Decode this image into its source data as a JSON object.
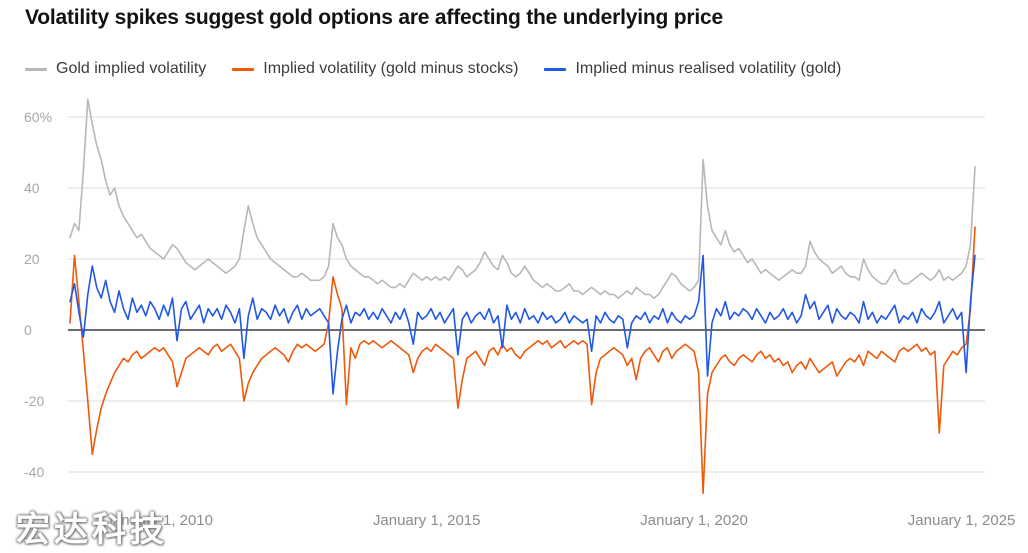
{
  "title": "Volatility spikes suggest gold options are affecting the underlying price",
  "watermark": "宏达科技",
  "colors": {
    "gray_series": "#b8b8b8",
    "orange_series": "#ee5a0a",
    "blue_series": "#2057e5",
    "grid": "#dcdcdc",
    "zero_line": "#3c3c3c",
    "title_text": "#121212",
    "legend_text": "#3c3c3c",
    "y_axis_text": "#a8a8a8",
    "x_axis_text": "#8c8c8c"
  },
  "legend": [
    {
      "label": "Gold implied volatility",
      "color": "#b8b8b8"
    },
    {
      "label": "Implied volatility (gold minus stocks)",
      "color": "#ee5a0a"
    },
    {
      "label": "Implied minus realised volatility (gold)",
      "color": "#2057e5"
    }
  ],
  "chart_data": {
    "type": "line",
    "title": "Volatility spikes suggest gold options are affecting the underlying price",
    "xlabel": "",
    "ylabel": "",
    "unit": "%",
    "grid": "horizontal",
    "legend_position": "top",
    "x_start": 2008.3333,
    "x_step": 0.0833333,
    "x_tick_values": [
      2010,
      2015,
      2020,
      2025
    ],
    "x_tick_labels": [
      "January 1, 2010",
      "January 1, 2015",
      "January 1, 2020",
      "January 1, 2025"
    ],
    "y_ticks": [
      60,
      40,
      20,
      0,
      -20,
      -40
    ],
    "y_tick_labels": [
      "60%",
      "40",
      "20",
      "0",
      "-20",
      "-40"
    ],
    "ylim": [
      -48,
      66
    ],
    "series": [
      {
        "name": "Gold implied volatility",
        "color": "#b8b8b8",
        "values": [
          26,
          30,
          28,
          45,
          65,
          58,
          52,
          48,
          42,
          38,
          40,
          35,
          32,
          30,
          28,
          26,
          27,
          25,
          23,
          22,
          21,
          20,
          22,
          24,
          23,
          21,
          19,
          18,
          17,
          18,
          19,
          20,
          19,
          18,
          17,
          16,
          17,
          18,
          20,
          28,
          35,
          30,
          26,
          24,
          22,
          20,
          19,
          18,
          17,
          16,
          15,
          15,
          16,
          15,
          14,
          14,
          14,
          15,
          18,
          30,
          26,
          24,
          20,
          18,
          17,
          16,
          15,
          15,
          14,
          13,
          14,
          13,
          12,
          12,
          13,
          12,
          14,
          16,
          15,
          14,
          15,
          14,
          15,
          14,
          15,
          14,
          16,
          18,
          17,
          15,
          16,
          17,
          19,
          22,
          20,
          18,
          17,
          21,
          19,
          16,
          15,
          16,
          18,
          16,
          14,
          13,
          12,
          13,
          12,
          11,
          11,
          12,
          13,
          11,
          11,
          10,
          11,
          12,
          11,
          10,
          11,
          10,
          10,
          9,
          10,
          11,
          10,
          12,
          11,
          10,
          10,
          9,
          10,
          12,
          14,
          16,
          15,
          13,
          12,
          11,
          12,
          14,
          48,
          35,
          28,
          26,
          24,
          28,
          24,
          22,
          23,
          21,
          19,
          20,
          18,
          16,
          17,
          16,
          15,
          14,
          15,
          16,
          17,
          16,
          16,
          18,
          25,
          22,
          20,
          19,
          18,
          16,
          17,
          18,
          16,
          15,
          15,
          14,
          20,
          17,
          15,
          14,
          13,
          13,
          15,
          17,
          14,
          13,
          13,
          14,
          15,
          16,
          15,
          14,
          15,
          17,
          14,
          15,
          14,
          15,
          16,
          18,
          24,
          46
        ]
      },
      {
        "name": "Implied volatility (gold minus stocks)",
        "color": "#ee5a0a",
        "values": [
          2,
          21,
          8,
          -6,
          -20,
          -35,
          -28,
          -22,
          -18,
          -15,
          -12,
          -10,
          -8,
          -9,
          -7,
          -6,
          -8,
          -7,
          -6,
          -5,
          -6,
          -5,
          -7,
          -9,
          -16,
          -12,
          -8,
          -7,
          -6,
          -5,
          -6,
          -7,
          -5,
          -4,
          -6,
          -5,
          -4,
          -6,
          -8,
          -20,
          -15,
          -12,
          -10,
          -8,
          -7,
          -6,
          -5,
          -6,
          -7,
          -9,
          -6,
          -4,
          -5,
          -4,
          -5,
          -6,
          -5,
          -4,
          2,
          15,
          10,
          6,
          -21,
          -5,
          -8,
          -4,
          -3,
          -4,
          -3,
          -4,
          -5,
          -4,
          -3,
          -4,
          -5,
          -6,
          -7,
          -12,
          -8,
          -6,
          -5,
          -6,
          -4,
          -5,
          -6,
          -7,
          -8,
          -22,
          -14,
          -8,
          -7,
          -6,
          -8,
          -10,
          -6,
          -5,
          -7,
          -4,
          -6,
          -5,
          -7,
          -8,
          -6,
          -5,
          -4,
          -3,
          -4,
          -3,
          -5,
          -4,
          -3,
          -5,
          -4,
          -3,
          -4,
          -3,
          -4,
          -21,
          -12,
          -8,
          -7,
          -6,
          -5,
          -6,
          -7,
          -10,
          -8,
          -14,
          -8,
          -6,
          -5,
          -7,
          -9,
          -6,
          -5,
          -8,
          -6,
          -5,
          -4,
          -5,
          -6,
          -12,
          -46,
          -18,
          -12,
          -10,
          -8,
          -7,
          -9,
          -10,
          -8,
          -7,
          -8,
          -9,
          -7,
          -6,
          -8,
          -7,
          -9,
          -8,
          -10,
          -9,
          -12,
          -10,
          -9,
          -11,
          -8,
          -10,
          -12,
          -11,
          -10,
          -9,
          -13,
          -11,
          -9,
          -8,
          -9,
          -7,
          -10,
          -6,
          -7,
          -8,
          -6,
          -7,
          -8,
          -9,
          -6,
          -5,
          -6,
          -5,
          -4,
          -6,
          -5,
          -7,
          -6,
          -29,
          -10,
          -8,
          -6,
          -7,
          -5,
          -4,
          6,
          29
        ]
      },
      {
        "name": "Implied minus realised volatility (gold)",
        "color": "#2057e5",
        "values": [
          8,
          13,
          5,
          -2,
          10,
          18,
          12,
          9,
          14,
          8,
          5,
          11,
          6,
          3,
          9,
          5,
          7,
          4,
          8,
          6,
          3,
          7,
          4,
          9,
          -3,
          6,
          8,
          3,
          5,
          7,
          2,
          6,
          4,
          6,
          3,
          7,
          5,
          2,
          6,
          -8,
          4,
          9,
          3,
          6,
          5,
          3,
          7,
          4,
          6,
          2,
          5,
          7,
          3,
          6,
          4,
          5,
          6,
          4,
          2,
          -18,
          -6,
          3,
          7,
          2,
          5,
          4,
          6,
          3,
          5,
          3,
          6,
          4,
          2,
          5,
          3,
          6,
          2,
          -4,
          5,
          3,
          4,
          6,
          3,
          5,
          2,
          4,
          6,
          -7,
          3,
          5,
          2,
          4,
          5,
          3,
          6,
          2,
          4,
          -5,
          7,
          3,
          5,
          2,
          6,
          3,
          4,
          2,
          5,
          3,
          4,
          2,
          3,
          5,
          2,
          4,
          3,
          2,
          3,
          -6,
          4,
          2,
          5,
          3,
          2,
          4,
          3,
          -5,
          2,
          4,
          3,
          5,
          2,
          4,
          3,
          6,
          2,
          5,
          3,
          2,
          4,
          3,
          4,
          8,
          21,
          -13,
          2,
          6,
          4,
          8,
          3,
          5,
          4,
          6,
          5,
          3,
          6,
          4,
          2,
          5,
          3,
          4,
          6,
          3,
          5,
          2,
          4,
          10,
          6,
          8,
          3,
          5,
          7,
          2,
          6,
          4,
          3,
          5,
          4,
          2,
          8,
          3,
          5,
          2,
          4,
          3,
          5,
          7,
          2,
          4,
          3,
          5,
          2,
          6,
          4,
          3,
          5,
          8,
          2,
          4,
          6,
          3,
          5,
          -12,
          8,
          21
        ]
      }
    ]
  }
}
